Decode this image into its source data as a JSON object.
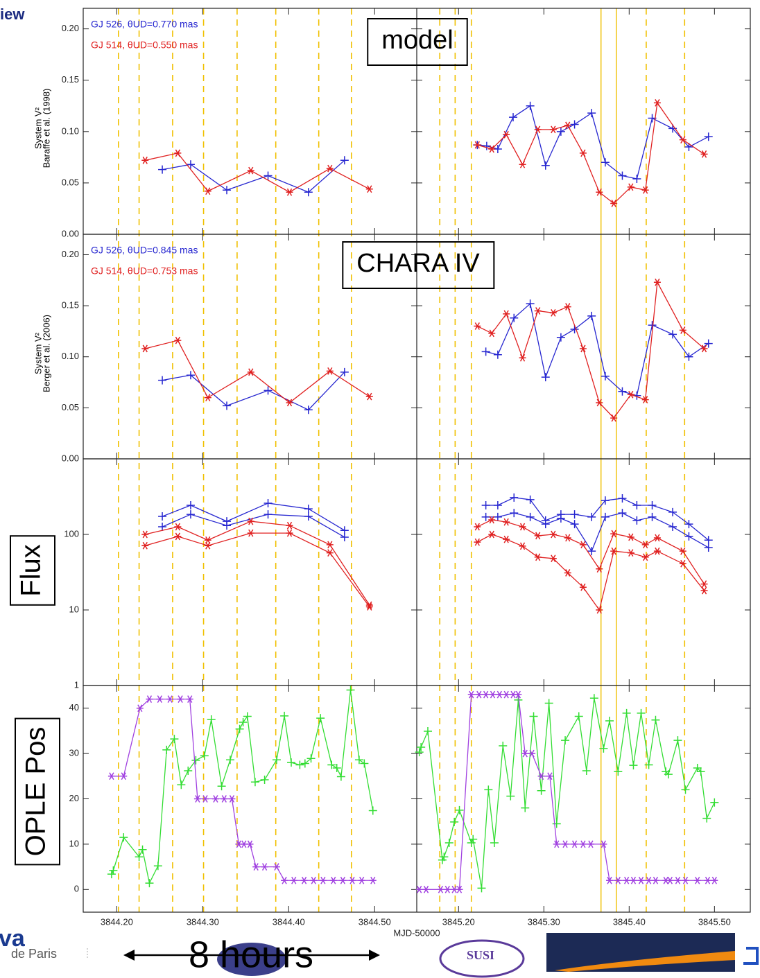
{
  "header_fragment": "iew",
  "footer": {
    "left_logo": "va",
    "left_logo_sub": "de Paris",
    "duration": "8 hours",
    "susi": "SUSI"
  },
  "chart_data": {
    "type": "line",
    "xlabel": "MJD-50000",
    "x_segments": [
      {
        "xlim": [
          3844.161,
          3844.549
        ],
        "xticks": [
          {
            "value": 3844.2,
            "label": "3844.20"
          },
          {
            "value": 3844.3,
            "label": "3844.30"
          },
          {
            "value": 3844.4,
            "label": "3844.40"
          },
          {
            "value": 3844.5,
            "label": "3844.50"
          }
        ]
      },
      {
        "xlim": [
          3845.151,
          3845.542
        ],
        "xticks": [
          {
            "value": 3845.2,
            "label": "3845.20"
          },
          {
            "value": 3845.3,
            "label": "3845.30"
          },
          {
            "value": 3845.4,
            "label": "3845.40"
          },
          {
            "value": 3845.5,
            "label": "3845.50"
          }
        ]
      }
    ],
    "vlines_color": "#f0c000",
    "vlines_dashed": [
      3844.202,
      3844.226,
      3844.265,
      3844.301,
      3844.34,
      3844.385,
      3844.435,
      3844.473,
      3845.178,
      3845.196,
      3845.215,
      3845.42,
      3845.465
    ],
    "vlines_solid": [
      3845.367,
      3845.385
    ],
    "panels": [
      {
        "ylabel": [
          "System V²",
          "Baraffe et al. (1998)"
        ],
        "annotation": "model",
        "log": false,
        "ylim": [
          0,
          0.22
        ],
        "yticks": [
          {
            "value": 0,
            "label": "0.00"
          },
          {
            "value": 0.05,
            "label": "0.05"
          },
          {
            "value": 0.1,
            "label": "0.10"
          },
          {
            "value": 0.15,
            "label": "0.15"
          },
          {
            "value": 0.2,
            "label": "0.20"
          }
        ],
        "series": [
          {
            "name": "GJ 526, θUD=0.770 mas",
            "color": "#2626d0",
            "marker": "plus",
            "x": [
              3844.253,
              3844.286,
              3844.328,
              3844.376,
              3844.423,
              3844.465,
              3845.222,
              3845.233,
              3845.246,
              3845.264,
              3845.284,
              3845.302,
              3845.32,
              3845.336,
              3845.356,
              3845.372,
              3845.392,
              3845.409,
              3845.427,
              3845.451,
              3845.47,
              3845.493
            ],
            "values": [
              0.063,
              0.068,
              0.043,
              0.057,
              0.041,
              0.072,
              0.087,
              0.086,
              0.083,
              0.114,
              0.125,
              0.067,
              0.1,
              0.107,
              0.118,
              0.07,
              0.057,
              0.054,
              0.113,
              0.103,
              0.085,
              0.095
            ]
          },
          {
            "name": "GJ 514, θUD=0.550 mas",
            "color": "#e02020",
            "marker": "star",
            "x": [
              3844.233,
              3844.271,
              3844.306,
              3844.356,
              3844.401,
              3844.448,
              3844.494,
              3845.222,
              3845.239,
              3845.256,
              3845.275,
              3845.293,
              3845.311,
              3845.328,
              3845.346,
              3845.365,
              3845.382,
              3845.402,
              3845.419,
              3845.433,
              3845.463,
              3845.488
            ],
            "values": [
              0.072,
              0.079,
              0.042,
              0.062,
              0.041,
              0.064,
              0.044,
              0.087,
              0.083,
              0.097,
              0.068,
              0.102,
              0.102,
              0.106,
              0.079,
              0.041,
              0.03,
              0.046,
              0.043,
              0.128,
              0.092,
              0.078
            ]
          }
        ]
      },
      {
        "ylabel": [
          "System V²",
          "Berger et al. (2006)"
        ],
        "annotation": "CHARA IV",
        "log": false,
        "ylim": [
          0,
          0.22
        ],
        "yticks": [
          {
            "value": 0,
            "label": "0.00"
          },
          {
            "value": 0.05,
            "label": "0.05"
          },
          {
            "value": 0.1,
            "label": "0.10"
          },
          {
            "value": 0.15,
            "label": "0.15"
          },
          {
            "value": 0.2,
            "label": "0.20"
          }
        ],
        "series": [
          {
            "name": "GJ 526, θUD=0.845 mas",
            "color": "#2626d0",
            "marker": "plus",
            "x": [
              3844.253,
              3844.286,
              3844.328,
              3844.376,
              3844.423,
              3844.465,
              3845.232,
              3845.246,
              3845.265,
              3845.284,
              3845.302,
              3845.32,
              3845.336,
              3845.356,
              3845.372,
              3845.392,
              3845.409,
              3845.427,
              3845.451,
              3845.47,
              3845.493
            ],
            "values": [
              0.077,
              0.082,
              0.052,
              0.067,
              0.048,
              0.085,
              0.105,
              0.102,
              0.138,
              0.152,
              0.08,
              0.119,
              0.127,
              0.14,
              0.081,
              0.066,
              0.062,
              0.131,
              0.122,
              0.1,
              0.113
            ]
          },
          {
            "name": "GJ 514, θUD=0.753 mas",
            "color": "#e02020",
            "marker": "star",
            "x": [
              3844.233,
              3844.271,
              3844.306,
              3844.356,
              3844.401,
              3844.448,
              3844.494,
              3845.222,
              3845.239,
              3845.256,
              3845.275,
              3845.293,
              3845.311,
              3845.328,
              3845.346,
              3845.365,
              3845.382,
              3845.402,
              3845.419,
              3845.433,
              3845.463,
              3845.488
            ],
            "values": [
              0.108,
              0.116,
              0.06,
              0.085,
              0.055,
              0.086,
              0.061,
              0.13,
              0.123,
              0.142,
              0.099,
              0.145,
              0.143,
              0.149,
              0.108,
              0.055,
              0.04,
              0.063,
              0.058,
              0.173,
              0.126,
              0.108
            ]
          }
        ]
      },
      {
        "ylabel": "Flux",
        "log": true,
        "ylim": [
          1,
          1000
        ],
        "yticks": [
          1,
          10,
          100
        ],
        "series": [
          {
            "color": "#2626d0",
            "marker": "plus",
            "x": [
              3844.253,
              3844.286,
              3844.328,
              3844.376,
              3844.423,
              3844.465,
              3845.232,
              3845.246,
              3845.265,
              3845.284,
              3845.302,
              3845.32,
              3845.336,
              3845.356,
              3845.372,
              3845.392,
              3845.409,
              3845.427,
              3845.451,
              3845.47,
              3845.493
            ],
            "values": [
              173,
              243,
              149,
              259,
              218,
              113,
              243,
              243,
              307,
              288,
              153,
              184,
              184,
              170,
              281,
              300,
              243,
              243,
              197,
              137,
              84
            ]
          },
          {
            "color": "#2626d0",
            "marker": "plus",
            "x": [
              3844.253,
              3844.286,
              3844.328,
              3844.376,
              3844.423,
              3844.465,
              3845.232,
              3845.246,
              3845.265,
              3845.284,
              3845.302,
              3845.32,
              3845.336,
              3845.356,
              3845.372,
              3845.392,
              3845.409,
              3845.427,
              3845.451,
              3845.47,
              3845.493
            ],
            "values": [
              126,
              184,
              131,
              184,
              173,
              92,
              170,
              170,
              192,
              170,
              137,
              163,
              137,
              60,
              170,
              192,
              153,
              170,
              126,
              94,
              67
            ]
          },
          {
            "color": "#e02020",
            "marker": "star",
            "x": [
              3844.233,
              3844.271,
              3844.306,
              3844.356,
              3844.401,
              3844.448,
              3844.494,
              3845.222,
              3845.239,
              3845.256,
              3845.275,
              3845.293,
              3845.311,
              3845.328,
              3845.346,
              3845.365,
              3845.382,
              3845.402,
              3845.419,
              3845.433,
              3845.463,
              3845.488
            ],
            "values": [
              100,
              126,
              84,
              149,
              131,
              73,
              11.6,
              126,
              156,
              146,
              126,
              96,
              100,
              90,
              73,
              35,
              102,
              92,
              73,
              90,
              60,
              22
            ]
          },
          {
            "color": "#e02020",
            "marker": "star",
            "x": [
              3844.233,
              3844.271,
              3844.306,
              3844.356,
              3844.401,
              3844.448,
              3844.494,
              3845.222,
              3845.239,
              3845.256,
              3845.275,
              3845.293,
              3845.311,
              3845.328,
              3845.346,
              3845.365,
              3845.382,
              3845.402,
              3845.419,
              3845.433,
              3845.463,
              3845.488
            ],
            "values": [
              71,
              94,
              71,
              104,
              104,
              57,
              11,
              79,
              100,
              86,
              70,
              50,
              48,
              31,
              20,
              10,
              60,
              57,
              50,
              60,
              41,
              18
            ]
          }
        ]
      },
      {
        "ylabel": "OPLE Pos",
        "log": false,
        "ylim": [
          -5,
          45
        ],
        "yticks": [
          0,
          10,
          20,
          30,
          40
        ],
        "series": [
          {
            "color": "#33dd33",
            "marker": "plus",
            "x": [
              3844.194,
              3844.196,
              3844.208,
              3844.226,
              3844.23,
              3844.238,
              3844.248,
              3844.258,
              3844.267,
              3844.275,
              3844.283,
              3844.292,
              3844.302,
              3844.31,
              3844.322,
              3844.332,
              3844.343,
              3844.347,
              3844.352,
              3844.361,
              3844.372,
              3844.386,
              3844.395,
              3844.403,
              3844.413,
              3844.419,
              3844.426,
              3844.437,
              3844.45,
              3844.456,
              3844.461,
              3844.472,
              3844.482,
              3844.488,
              3844.498,
              3845.154,
              3845.156,
              3845.164,
              3845.181,
              3845.183,
              3845.189,
              3845.195,
              3845.201,
              3845.215,
              3845.217,
              3845.227,
              3845.235,
              3845.242,
              3845.252,
              3845.261,
              3845.27,
              3845.278,
              3845.288,
              3845.297,
              3845.306,
              3845.315,
              3845.325,
              3845.341,
              3845.35,
              3845.359,
              3845.37,
              3845.377,
              3845.387,
              3845.397,
              3845.405,
              3845.414,
              3845.423,
              3845.431,
              3845.443,
              3845.446,
              3845.457,
              3845.466,
              3845.48,
              3845.484,
              3845.491,
              3845.5
            ],
            "values": [
              3.4,
              4.2,
              11.5,
              7.2,
              8.8,
              1.4,
              5.2,
              30.8,
              33.2,
              23.1,
              26.2,
              28.5,
              29.5,
              37.5,
              22.8,
              28.6,
              35.4,
              36.9,
              38.2,
              23.7,
              24.2,
              28.6,
              38.3,
              28.0,
              27.5,
              27.8,
              28.9,
              37.8,
              27.5,
              26.8,
              24.9,
              44.0,
              28.6,
              27.8,
              17.4,
              30.3,
              31.4,
              34.9,
              6.5,
              7.2,
              10.3,
              14.9,
              17.5,
              10.3,
              11.1,
              0.3,
              22.0,
              10.3,
              31.7,
              20.6,
              41.8,
              18.0,
              38.2,
              21.8,
              41.1,
              14.5,
              32.9,
              38.2,
              26.2,
              42.2,
              31.1,
              37.2,
              26.0,
              38.9,
              27.4,
              38.9,
              27.5,
              37.4,
              26.0,
              25.4,
              32.9,
              22.0,
              26.8,
              26.0,
              15.7,
              19.2
            ]
          },
          {
            "color": "#a040e0",
            "marker": "star",
            "x": [
              3844.194,
              3844.208,
              3844.227,
              3844.238,
              3844.25,
              3844.262,
              3844.274,
              3844.285,
              3844.294,
              3844.303,
              3844.315,
              3844.325,
              3844.334,
              3844.342,
              3844.348,
              3844.355,
              3844.362,
              3844.372,
              3844.386,
              3844.395,
              3844.406,
              3844.418,
              3844.429,
              3844.44,
              3844.452,
              3844.463,
              3844.474,
              3844.485,
              3844.498,
              3845.154,
              3845.162,
              3845.179,
              3845.187,
              3845.195,
              3845.201,
              3845.215,
              3845.224,
              3845.232,
              3845.24,
              3845.248,
              3845.256,
              3845.264,
              3845.27,
              3845.278,
              3845.286,
              3845.297,
              3845.307,
              3845.315,
              3845.325,
              3845.336,
              3845.346,
              3845.355,
              3845.37,
              3845.377,
              3845.387,
              3845.397,
              3845.405,
              3845.414,
              3845.423,
              3845.431,
              3845.443,
              3845.448,
              3845.457,
              3845.466,
              3845.48,
              3845.492,
              3845.5
            ],
            "values": [
              25,
              25,
              40,
              42,
              42,
              42,
              42,
              42,
              20,
              20,
              20,
              20,
              20,
              10,
              10,
              10,
              5,
              5,
              5,
              2,
              2,
              2,
              2,
              2,
              2,
              2,
              2,
              2,
              2,
              0,
              0,
              0,
              0,
              0,
              0,
              43,
              43,
              43,
              43,
              43,
              43,
              43,
              43,
              30,
              30,
              25,
              25,
              10,
              10,
              10,
              10,
              10,
              10,
              2,
              2,
              2,
              2,
              2,
              2,
              2,
              2,
              2,
              2,
              2,
              2,
              2,
              2
            ]
          }
        ]
      }
    ]
  }
}
